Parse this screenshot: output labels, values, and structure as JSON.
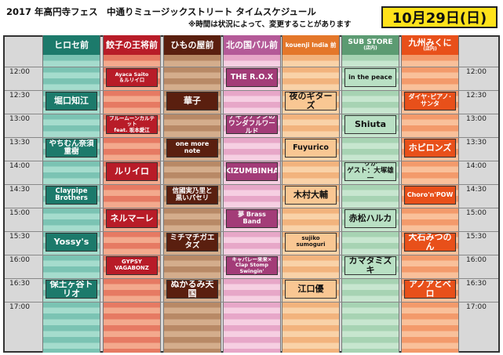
{
  "header": {
    "title": "2017 年高円寺フェス　中通りミュージックストリート タイムスケジュール",
    "note": "※時間は状況によって、変更することがあります",
    "date": "10月29日(日)"
  },
  "columns": [
    {
      "name": "ヒロセ前",
      "sub": "",
      "color": "#1c7a6b",
      "stripe": [
        "#7bc3b3",
        "#a5dccd"
      ],
      "box": "#1c7a6b",
      "boxText": "#ffffff"
    },
    {
      "name": "餃子の王将前",
      "sub": "",
      "color": "#b81c28",
      "stripe": [
        "#e67a63",
        "#f3a98d"
      ],
      "box": "#b81c28",
      "boxText": "#ffffff"
    },
    {
      "name": "ひもの屋前",
      "sub": "",
      "color": "#5a1f0f",
      "stripe": [
        "#b88966",
        "#d4ad8c"
      ],
      "box": "#5a1f0f",
      "boxText": "#ffffff"
    },
    {
      "name": "北の国バル前",
      "sub": "",
      "color": "#b45a98",
      "stripe": [
        "#e7a7c8",
        "#f6cfe2"
      ],
      "box": "#a33c78",
      "boxText": "#ffffff"
    },
    {
      "name": "kouenji India 前",
      "sub": "",
      "color": "#e4772a",
      "stripe": [
        "#f2b37d",
        "#f9d2a8"
      ],
      "box": "#f9c793",
      "boxText": "#111111"
    },
    {
      "name": "SUB STORE",
      "sub": "(店内)",
      "color": "#5c9b72",
      "stripe": [
        "#a7d3b3",
        "#c7e6cf"
      ],
      "box": "#b9e0c4",
      "boxText": "#111111"
    },
    {
      "name": "九州みくに",
      "sub": "(店内)",
      "color": "#e8501a",
      "stripe": [
        "#f39a6b",
        "#f9c09a"
      ],
      "box": "#e8501a",
      "boxText": "#ffffff"
    }
  ],
  "times": [
    "12:00",
    "12:30",
    "13:00",
    "13:30",
    "14:00",
    "14:30",
    "15:00",
    "15:30",
    "16:00",
    "16:30",
    "17:00"
  ],
  "performances": [
    {
      "col": 1,
      "start": "12:00",
      "end": "12:15",
      "label": "Ayaca Saito\n＆ルリイロ"
    },
    {
      "col": 3,
      "start": "12:00",
      "end": "12:15",
      "label": "THE R.O.X"
    },
    {
      "col": 5,
      "start": "12:00",
      "end": "12:15",
      "label": "in the peace"
    },
    {
      "col": 0,
      "start": "12:30",
      "end": "12:45",
      "label": "堀口知江"
    },
    {
      "col": 2,
      "start": "12:30",
      "end": "12:45",
      "label": "華子"
    },
    {
      "col": 4,
      "start": "12:30",
      "end": "12:45",
      "label": "夜のギターズ"
    },
    {
      "col": 6,
      "start": "12:30",
      "end": "12:45",
      "label": "ダイヤ･ピアノ･サンタ"
    },
    {
      "col": 1,
      "start": "13:00",
      "end": "13:15",
      "label": "ブルームーンカルテット\nfeat. 坂本愛江"
    },
    {
      "col": 3,
      "start": "13:00",
      "end": "13:15",
      "label": "ナギラアツシの\nワンダフルワールド"
    },
    {
      "col": 5,
      "start": "13:00",
      "end": "13:15",
      "label": "Shiuta"
    },
    {
      "col": 0,
      "start": "13:30",
      "end": "13:45",
      "label": "やちむん奈須重樹"
    },
    {
      "col": 2,
      "start": "13:30",
      "end": "13:45",
      "label": "one more note"
    },
    {
      "col": 4,
      "start": "13:30",
      "end": "13:45",
      "label": "Fuyurico"
    },
    {
      "col": 6,
      "start": "13:30",
      "end": "13:45",
      "label": "ホピロンズ"
    },
    {
      "col": 1,
      "start": "14:00",
      "end": "14:15",
      "label": "ルリイロ"
    },
    {
      "col": 3,
      "start": "14:00",
      "end": "14:15",
      "label": "KIZUMBINHA"
    },
    {
      "col": 5,
      "start": "14:00",
      "end": "14:15",
      "label": "りか\nゲスト：大塚雄一"
    },
    {
      "col": 0,
      "start": "14:30",
      "end": "14:45",
      "label": "Claypipe\nBrothers"
    },
    {
      "col": 2,
      "start": "14:30",
      "end": "14:45",
      "label": "信國実乃里と\n黒いパセリ"
    },
    {
      "col": 4,
      "start": "14:30",
      "end": "14:45",
      "label": "木村大輔"
    },
    {
      "col": 6,
      "start": "14:30",
      "end": "14:45",
      "label": "Choro'n'POW"
    },
    {
      "col": 1,
      "start": "15:00",
      "end": "15:15",
      "label": "ネルマーレ"
    },
    {
      "col": 3,
      "start": "15:00",
      "end": "15:15",
      "label": "夢 Brass Band"
    },
    {
      "col": 5,
      "start": "15:00",
      "end": "15:15",
      "label": "赤松ハルカ"
    },
    {
      "col": 0,
      "start": "15:30",
      "end": "15:45",
      "label": "Yossy's"
    },
    {
      "col": 2,
      "start": "15:30",
      "end": "15:45",
      "label": "ミチマチガエタズ"
    },
    {
      "col": 4,
      "start": "15:30",
      "end": "15:45",
      "label": "sujiko sumoguri"
    },
    {
      "col": 6,
      "start": "15:30",
      "end": "15:45",
      "label": "大石みつのん"
    },
    {
      "col": 1,
      "start": "16:00",
      "end": "16:15",
      "label": "GYPSY VAGABONZ"
    },
    {
      "col": 3,
      "start": "16:00",
      "end": "16:15",
      "label": "キャバレー来来×\nClap Stomp\nSwingin'"
    },
    {
      "col": 5,
      "start": "16:00",
      "end": "16:15",
      "label": "カマタミズキ"
    },
    {
      "col": 0,
      "start": "16:30",
      "end": "16:45",
      "label": "保土ヶ谷トリオ"
    },
    {
      "col": 2,
      "start": "16:30",
      "end": "16:45",
      "label": "ぬかるみ天国"
    },
    {
      "col": 4,
      "start": "16:30",
      "end": "16:45",
      "label": "江口優"
    },
    {
      "col": 6,
      "start": "16:30",
      "end": "16:45",
      "label": "アノアとベロ"
    }
  ]
}
